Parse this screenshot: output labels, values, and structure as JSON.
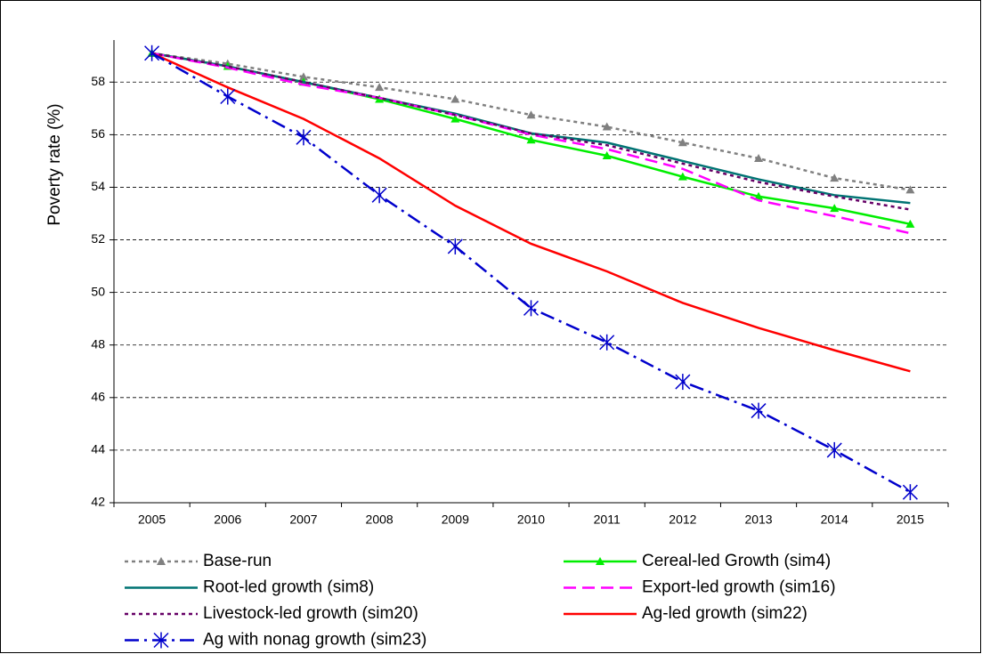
{
  "chart_data": {
    "type": "line",
    "y_label": "Poverty rate (%)",
    "categories": [
      "2005",
      "2006",
      "2007",
      "2008",
      "2009",
      "2010",
      "2011",
      "2012",
      "2013",
      "2014",
      "2015"
    ],
    "ylim": [
      42,
      59.6
    ],
    "yticks": [
      42,
      44,
      46,
      48,
      50,
      52,
      54,
      56,
      58
    ],
    "grid": true,
    "legend": "bottom",
    "series": [
      {
        "name": "Base-run",
        "color": "#808080",
        "dash": "dotted",
        "marker": "triangle",
        "values": [
          59.1,
          58.7,
          58.2,
          57.8,
          57.35,
          56.75,
          56.3,
          55.7,
          55.1,
          54.35,
          53.9
        ]
      },
      {
        "name": "Cereal-led Growth (sim4)",
        "color": "#00ee00",
        "dash": "solid",
        "marker": "triangle",
        "values": [
          59.1,
          58.6,
          58.0,
          57.35,
          56.6,
          55.8,
          55.2,
          54.4,
          53.65,
          53.2,
          52.6
        ]
      },
      {
        "name": "Root-led growth (sim8)",
        "color": "#007373",
        "dash": "solid",
        "marker": "none",
        "values": [
          59.1,
          58.6,
          58.0,
          57.4,
          56.8,
          56.05,
          55.7,
          55.0,
          54.3,
          53.7,
          53.4
        ]
      },
      {
        "name": "Export-led growth (sim16)",
        "color": "#ff00ff",
        "dash": "dashed",
        "marker": "none",
        "values": [
          59.1,
          58.55,
          57.9,
          57.4,
          56.75,
          56.0,
          55.45,
          54.7,
          53.5,
          52.9,
          52.25
        ]
      },
      {
        "name": "Livestock-led growth (sim20)",
        "color": "#660066",
        "dash": "dotted",
        "marker": "none",
        "values": [
          59.1,
          58.6,
          58.0,
          57.4,
          56.75,
          56.05,
          55.6,
          54.9,
          54.2,
          53.65,
          53.15
        ]
      },
      {
        "name": "Ag-led growth (sim22)",
        "color": "#ff0000",
        "dash": "solid",
        "marker": "none",
        "values": [
          59.1,
          57.8,
          56.6,
          55.1,
          53.3,
          51.85,
          50.8,
          49.6,
          48.65,
          47.8,
          47.0
        ]
      },
      {
        "name": "Ag with nonag growth (sim23)",
        "color": "#0000cc",
        "dash": "dashdot",
        "marker": "asterisk",
        "values": [
          59.1,
          57.45,
          55.9,
          53.7,
          51.75,
          49.4,
          48.1,
          46.6,
          45.5,
          44.0,
          42.4
        ]
      }
    ]
  }
}
